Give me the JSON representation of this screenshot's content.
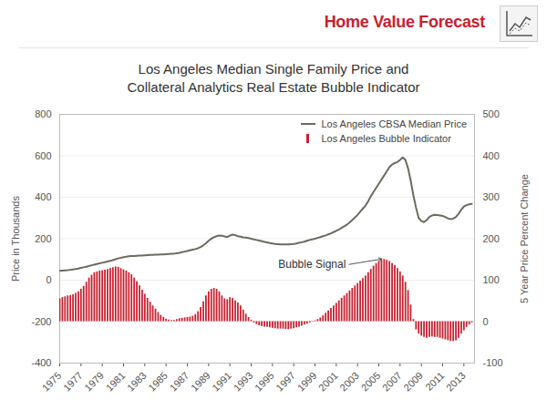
{
  "chart_data": {
    "type": "bar",
    "header": "Home Value Forecast",
    "title": "Los Angeles Median Single Family Price and\nCollateral Analytics Real Estate Bubble Indicator",
    "ylabel": "Price in Thousands",
    "y2label": "5 Year Price Percent Change",
    "annotations": [
      {
        "text": "Bubble Signal"
      }
    ],
    "legend": "top-right",
    "grid": true,
    "xlim": [
      1975,
      2014
    ],
    "xticks": [
      1975,
      1977,
      1979,
      1981,
      1983,
      1985,
      1987,
      1989,
      1991,
      1993,
      1995,
      1997,
      1999,
      2001,
      2003,
      2005,
      2007,
      2009,
      2011,
      2013
    ],
    "ylim": [
      -400,
      800
    ],
    "yticks": [
      -400,
      -200,
      0,
      200,
      400,
      600,
      800
    ],
    "y2lim": [
      -100,
      500
    ],
    "y2ticks": [
      -100,
      0,
      100,
      200,
      300,
      400,
      500
    ],
    "x": [
      1975,
      1975.25,
      1975.5,
      1975.75,
      1976,
      1976.25,
      1976.5,
      1976.75,
      1977,
      1977.25,
      1977.5,
      1977.75,
      1978,
      1978.25,
      1978.5,
      1978.75,
      1979,
      1979.25,
      1979.5,
      1979.75,
      1980,
      1980.25,
      1980.5,
      1980.75,
      1981,
      1981.25,
      1981.5,
      1981.75,
      1982,
      1982.25,
      1982.5,
      1982.75,
      1983,
      1983.25,
      1983.5,
      1983.75,
      1984,
      1984.25,
      1984.5,
      1984.75,
      1985,
      1985.25,
      1985.5,
      1985.75,
      1986,
      1986.25,
      1986.5,
      1986.75,
      1987,
      1987.25,
      1987.5,
      1987.75,
      1988,
      1988.25,
      1988.5,
      1988.75,
      1989,
      1989.25,
      1989.5,
      1989.75,
      1990,
      1990.25,
      1990.5,
      1990.75,
      1991,
      1991.25,
      1991.5,
      1991.75,
      1992,
      1992.25,
      1992.5,
      1992.75,
      1993,
      1993.25,
      1993.5,
      1993.75,
      1994,
      1994.25,
      1994.5,
      1994.75,
      1995,
      1995.25,
      1995.5,
      1995.75,
      1996,
      1996.25,
      1996.5,
      1996.75,
      1997,
      1997.25,
      1997.5,
      1997.75,
      1998,
      1998.25,
      1998.5,
      1998.75,
      1999,
      1999.25,
      1999.5,
      1999.75,
      2000,
      2000.25,
      2000.5,
      2000.75,
      2001,
      2001.25,
      2001.5,
      2001.75,
      2002,
      2002.25,
      2002.5,
      2002.75,
      2003,
      2003.25,
      2003.5,
      2003.75,
      2004,
      2004.25,
      2004.5,
      2004.75,
      2005,
      2005.25,
      2005.5,
      2005.75,
      2006,
      2006.25,
      2006.5,
      2006.75,
      2007,
      2007.25,
      2007.5,
      2007.75,
      2008,
      2008.25,
      2008.5,
      2008.75,
      2009,
      2009.25,
      2009.5,
      2009.75,
      2010,
      2010.25,
      2010.5,
      2010.75,
      2011,
      2011.25,
      2011.5,
      2011.75,
      2012,
      2012.25,
      2012.5,
      2012.75,
      2013,
      2013.25,
      2013.5,
      2013.75
    ],
    "series": [
      {
        "name": "Los Angeles CBSA Median Price",
        "type": "line",
        "color": "#6b6b5e",
        "values": [
          45,
          46,
          47,
          48,
          50,
          52,
          54,
          56,
          59,
          62,
          65,
          68,
          72,
          75,
          78,
          81,
          84,
          87,
          90,
          93,
          97,
          101,
          105,
          108,
          111,
          113,
          115,
          116,
          117,
          118,
          119,
          119,
          120,
          121,
          122,
          122,
          123,
          123,
          124,
          124,
          125,
          126,
          127,
          128,
          130,
          132,
          135,
          138,
          141,
          144,
          147,
          150,
          154,
          160,
          168,
          178,
          190,
          200,
          207,
          212,
          215,
          214,
          211,
          208,
          215,
          220,
          217,
          212,
          210,
          207,
          205,
          203,
          200,
          197,
          194,
          191,
          188,
          185,
          182,
          179,
          177,
          175,
          174,
          173,
          172,
          172,
          173,
          174,
          175,
          177,
          180,
          183,
          186,
          190,
          194,
          197,
          200,
          204,
          208,
          212,
          216,
          221,
          226,
          232,
          238,
          245,
          252,
          260,
          268,
          278,
          290,
          302,
          315,
          330,
          345,
          360,
          380,
          405,
          425,
          445,
          465,
          485,
          505,
          525,
          545,
          558,
          565,
          570,
          580,
          592,
          580,
          540,
          480,
          410,
          350,
          300,
          285,
          280,
          290,
          305,
          312,
          315,
          314,
          312,
          310,
          305,
          298,
          295,
          297,
          305,
          320,
          340,
          355,
          362,
          366,
          368
        ]
      },
      {
        "name": "Los Angeles Bubble Indicator",
        "type": "bar",
        "axis": "y2",
        "color": "#c8202f",
        "values": [
          55,
          58,
          60,
          62,
          63,
          65,
          68,
          72,
          78,
          85,
          95,
          105,
          112,
          118,
          120,
          122,
          123,
          124,
          126,
          128,
          130,
          132,
          131,
          128,
          125,
          122,
          118,
          113,
          105,
          96,
          86,
          76,
          66,
          56,
          47,
          38,
          30,
          22,
          15,
          10,
          6,
          4,
          3,
          3,
          5,
          7,
          8,
          9,
          10,
          11,
          13,
          17,
          24,
          34,
          48,
          62,
          72,
          78,
          80,
          78,
          72,
          62,
          55,
          53,
          58,
          56,
          50,
          45,
          38,
          28,
          18,
          10,
          3,
          -3,
          -7,
          -10,
          -12,
          -13,
          -14,
          -15,
          -16,
          -17,
          -18,
          -18,
          -18,
          -19,
          -19,
          -18,
          -17,
          -15,
          -13,
          -11,
          -8,
          -6,
          -3,
          -1,
          2,
          5,
          9,
          14,
          20,
          26,
          32,
          38,
          44,
          50,
          56,
          62,
          68,
          74,
          80,
          86,
          92,
          98,
          104,
          110,
          118,
          126,
          134,
          140,
          145,
          148,
          150,
          148,
          145,
          140,
          135,
          128,
          120,
          110,
          95,
          75,
          40,
          5,
          -20,
          -30,
          -35,
          -38,
          -40,
          -38,
          -37,
          -38,
          -38,
          -40,
          -42,
          -44,
          -46,
          -48,
          -48,
          -46,
          -40,
          -30,
          -22,
          -14,
          -8,
          -3
        ]
      }
    ]
  }
}
